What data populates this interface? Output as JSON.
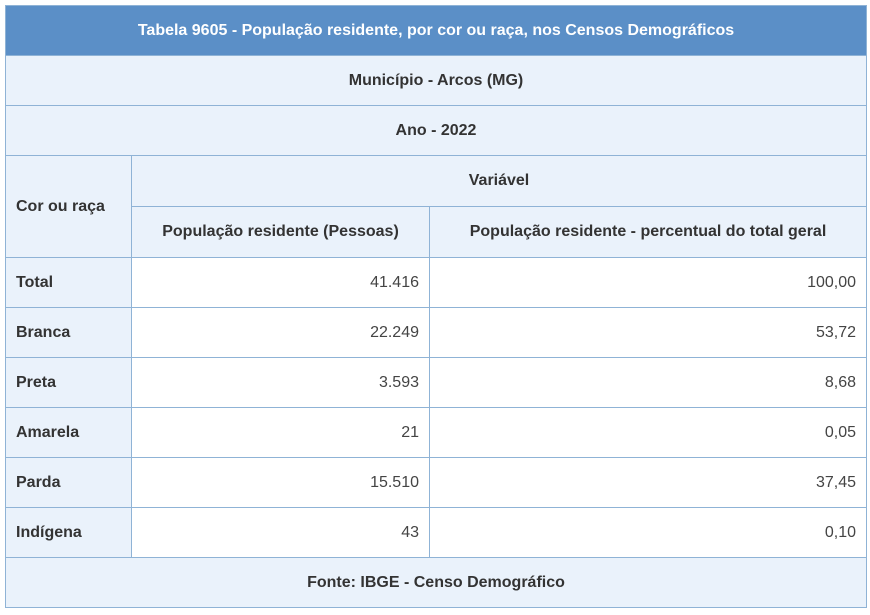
{
  "table": {
    "title": "Tabela 9605 - População residente, por cor ou raça, nos Censos Demográficos",
    "municipio": "Município - Arcos (MG)",
    "ano": "Ano - 2022",
    "row_header": "Cor ou raça",
    "variable_header": "Variável",
    "columns": [
      "População residente (Pessoas)",
      "População residente - percentual do total geral"
    ],
    "rows": [
      {
        "label": "Total",
        "pessoas": "41.416",
        "percentual": "100,00"
      },
      {
        "label": "Branca",
        "pessoas": "22.249",
        "percentual": "53,72"
      },
      {
        "label": "Preta",
        "pessoas": "3.593",
        "percentual": "8,68"
      },
      {
        "label": "Amarela",
        "pessoas": "21",
        "percentual": "0,05"
      },
      {
        "label": "Parda",
        "pessoas": "15.510",
        "percentual": "37,45"
      },
      {
        "label": "Indígena",
        "pessoas": "43",
        "percentual": "0,10"
      }
    ],
    "fonte": "Fonte: IBGE - Censo Demográfico"
  },
  "colors": {
    "title_bg": "#5b8fc7",
    "cell_bg": "#eaf2fb",
    "border": "#8fb3d6"
  }
}
